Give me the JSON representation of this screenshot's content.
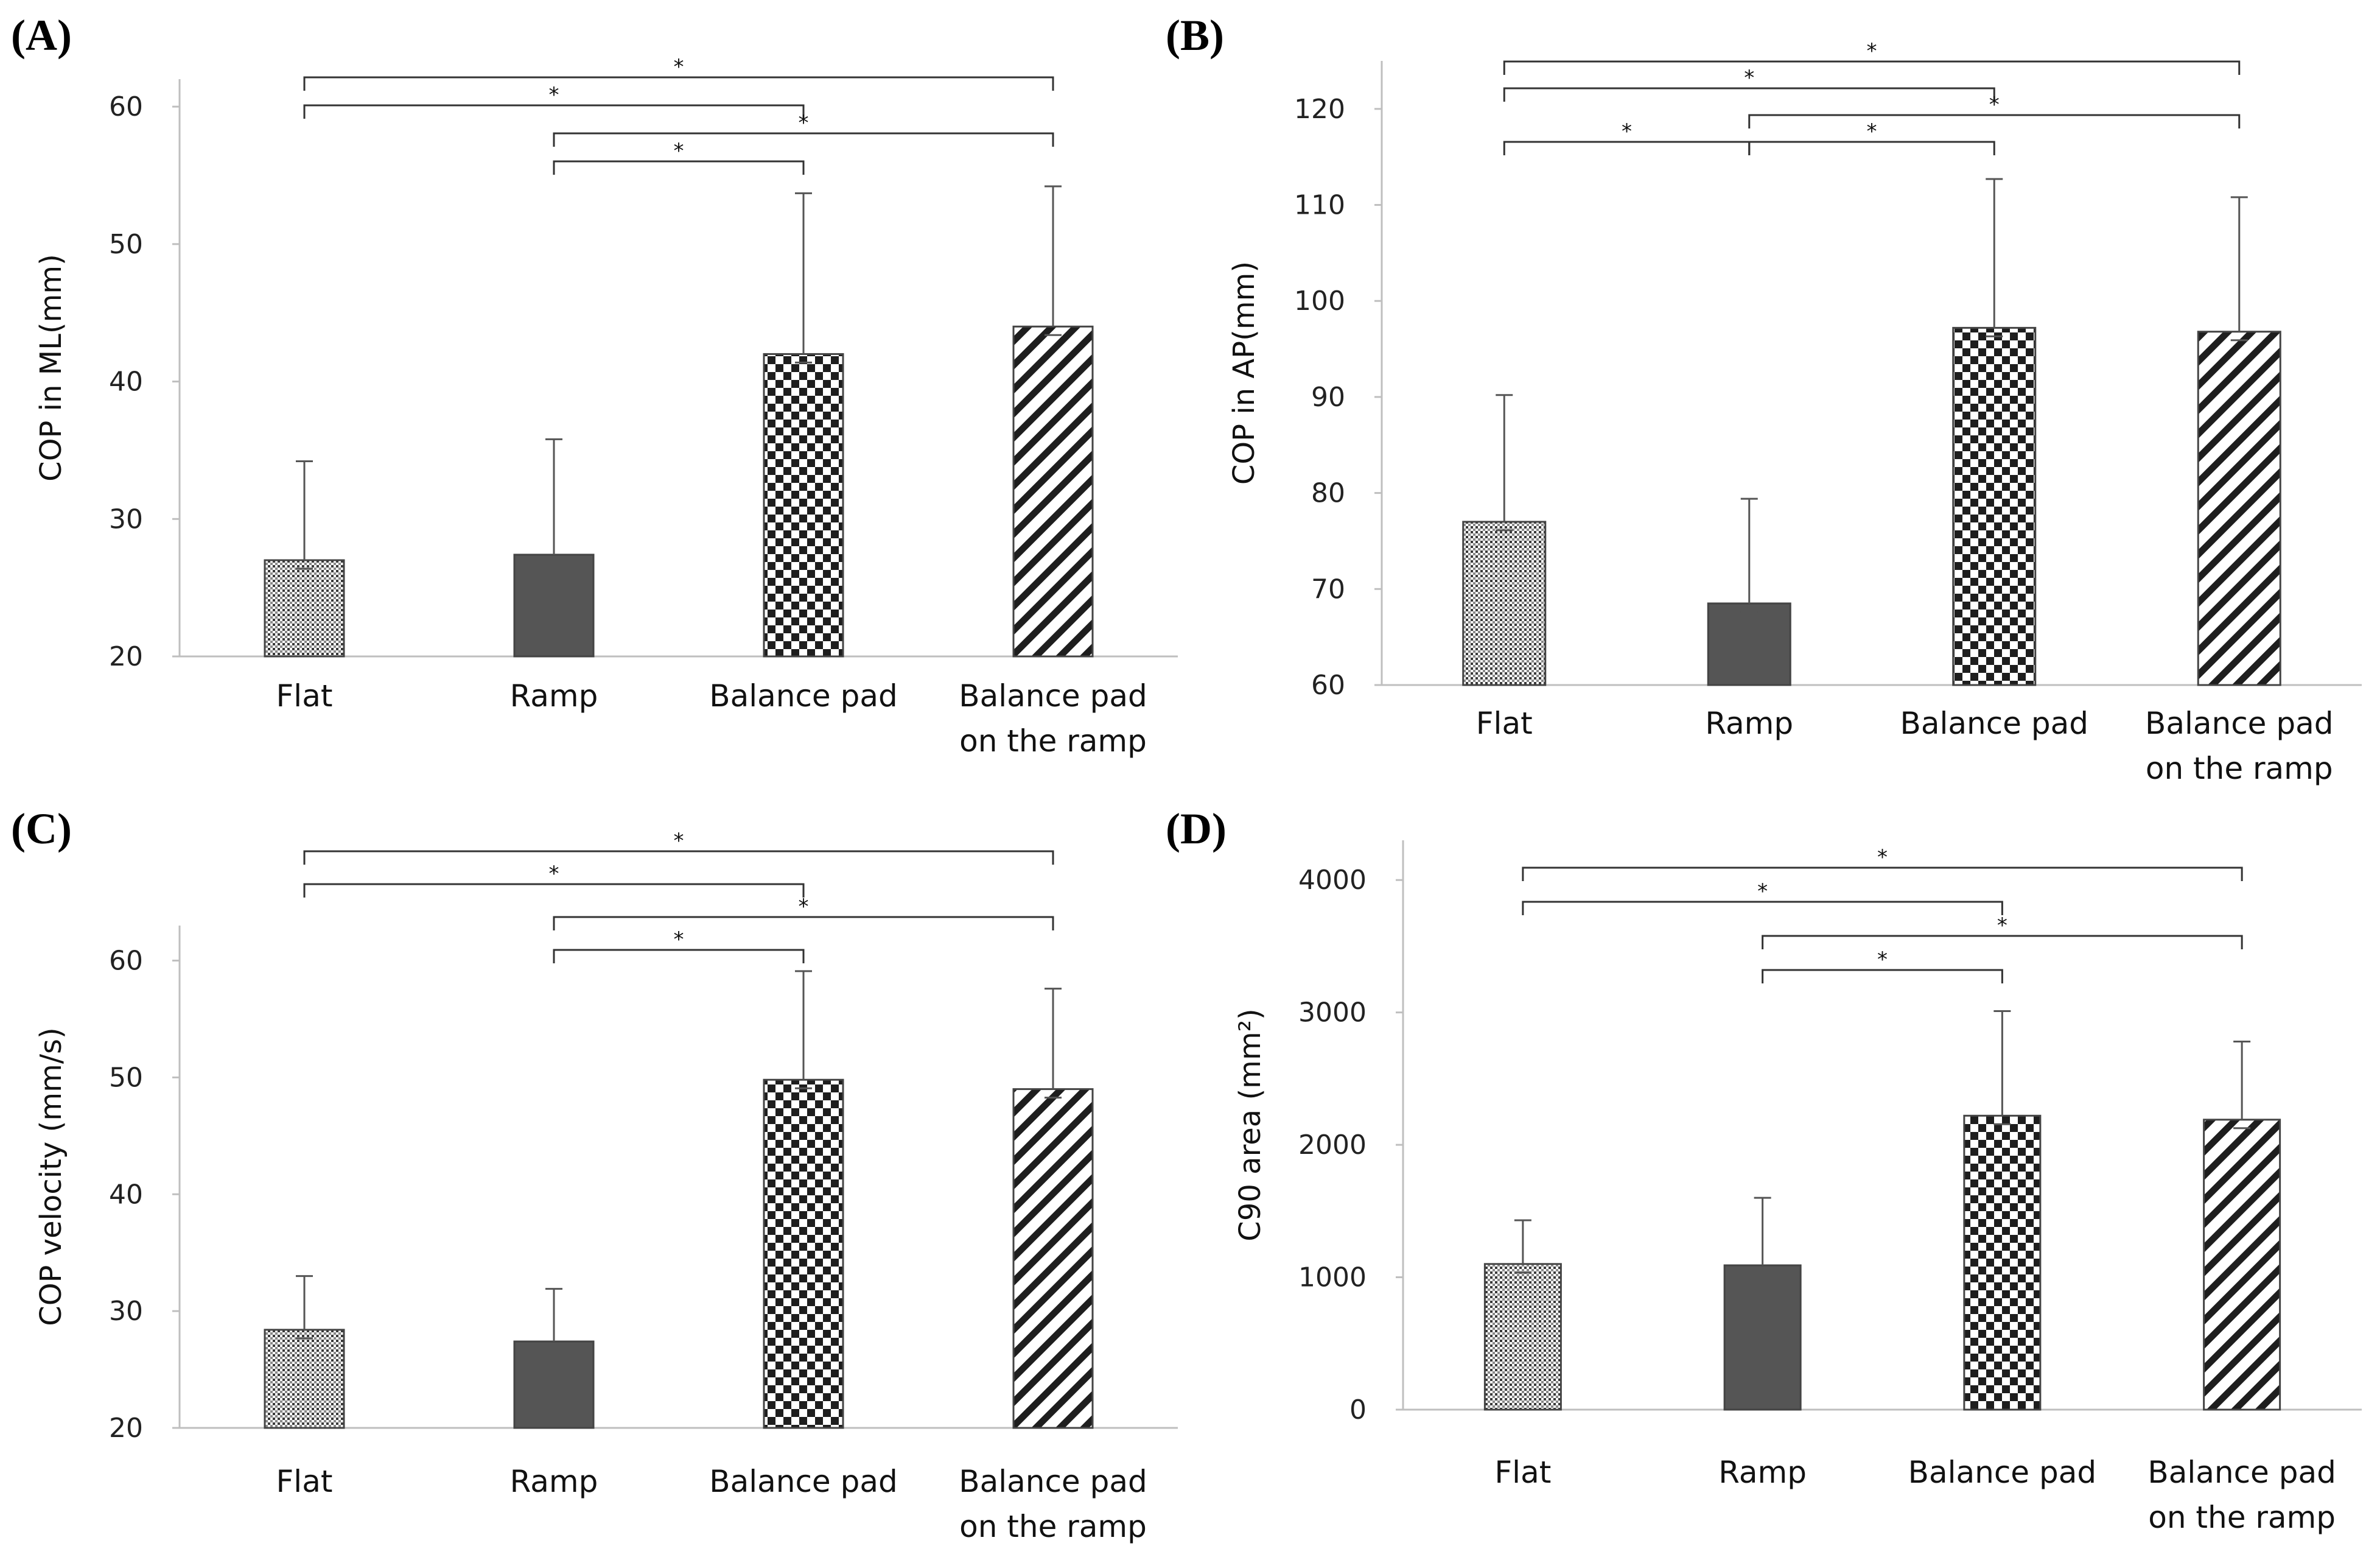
{
  "colors": {
    "solid": "#555555",
    "pattern": "#222222",
    "axis": "#bfbfbf",
    "error_bar": "#555555"
  },
  "chart_data": [
    {
      "panel": "(A)",
      "type": "bar",
      "categories": [
        "Flat",
        "Ramp",
        "Balance pad",
        "Balance pad\non the ramp"
      ],
      "values": [
        27.0,
        27.4,
        42.0,
        44.0
      ],
      "errors": [
        7.2,
        8.4,
        11.7,
        10.2
      ],
      "patterns": [
        "dots",
        "solid",
        "checker",
        "diagonal"
      ],
      "ylabel": "COP in ML(mm)",
      "ylim": [
        20,
        62
      ],
      "yticks": [
        20,
        30,
        40,
        50,
        60
      ],
      "significance": [
        {
          "from": 0,
          "to": 3,
          "label": "*",
          "level": 4
        },
        {
          "from": 0,
          "to": 2,
          "label": "*",
          "level": 3
        },
        {
          "from": 1,
          "to": 3,
          "label": "*",
          "level": 2
        },
        {
          "from": 1,
          "to": 2,
          "label": "*",
          "level": 1
        }
      ]
    },
    {
      "panel": "(B)",
      "type": "bar",
      "categories": [
        "Flat",
        "Ramp",
        "Balance pad",
        "Balance pad\non the ramp"
      ],
      "values": [
        77.0,
        68.5,
        97.2,
        96.8
      ],
      "errors": [
        13.2,
        10.9,
        15.5,
        14.0
      ],
      "patterns": [
        "dots",
        "solid",
        "checker",
        "diagonal"
      ],
      "ylabel": "COP in AP(mm)",
      "ylim": [
        60,
        125
      ],
      "yticks": [
        60,
        70,
        80,
        90,
        100,
        110,
        120
      ],
      "significance": [
        {
          "from": 0,
          "to": 3,
          "label": "*",
          "level": 4
        },
        {
          "from": 0,
          "to": 2,
          "label": "*",
          "level": 3
        },
        {
          "from": 1,
          "to": 3,
          "label": "*",
          "level": 2
        },
        {
          "from": 0,
          "to": 1,
          "label": "*",
          "level": 1
        },
        {
          "from": 1,
          "to": 2,
          "label": "*",
          "level": 1
        }
      ]
    },
    {
      "panel": "(C)",
      "type": "bar",
      "categories": [
        "Flat",
        "Ramp",
        "Balance pad",
        "Balance pad\non the ramp"
      ],
      "values": [
        28.4,
        27.4,
        49.8,
        49.0
      ],
      "errors": [
        4.6,
        4.5,
        9.3,
        8.6
      ],
      "patterns": [
        "dots",
        "solid",
        "checker",
        "diagonal"
      ],
      "ylabel": "COP velocity (mm/s)",
      "ylim": [
        20,
        63
      ],
      "yticks": [
        20,
        30,
        40,
        50,
        60
      ],
      "significance": [
        {
          "from": 0,
          "to": 3,
          "label": "*",
          "level": 4
        },
        {
          "from": 0,
          "to": 2,
          "label": "*",
          "level": 3
        },
        {
          "from": 1,
          "to": 3,
          "label": "*",
          "level": 2
        },
        {
          "from": 1,
          "to": 2,
          "label": "*",
          "level": 1
        }
      ]
    },
    {
      "panel": "(D)",
      "type": "bar",
      "categories": [
        "Flat",
        "Ramp",
        "Balance pad",
        "Balance pad\non the ramp"
      ],
      "values": [
        1100,
        1090,
        2220,
        2190
      ],
      "errors": [
        330,
        510,
        790,
        590
      ],
      "patterns": [
        "dots",
        "solid",
        "checker",
        "diagonal"
      ],
      "ylabel": "C90 area (mm²)",
      "ylim": [
        0,
        4300
      ],
      "yticks": [
        0,
        1000,
        2000,
        3000,
        4000
      ],
      "significance": [
        {
          "from": 0,
          "to": 3,
          "label": "*",
          "level": 4
        },
        {
          "from": 0,
          "to": 2,
          "label": "*",
          "level": 3
        },
        {
          "from": 1,
          "to": 3,
          "label": "*",
          "level": 2
        },
        {
          "from": 1,
          "to": 2,
          "label": "*",
          "level": 1
        }
      ]
    }
  ]
}
